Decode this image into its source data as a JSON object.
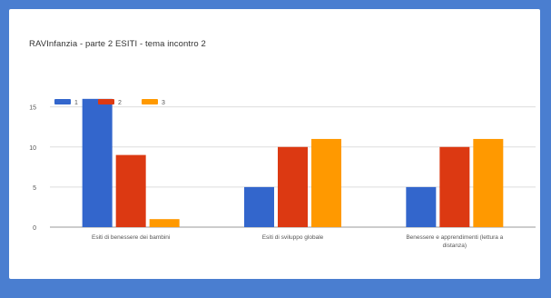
{
  "chart_data": {
    "type": "bar",
    "title": "RAVInfanzia - parte 2 ESITI - tema incontro 2",
    "categories": [
      [
        "Esiti di benessere dei bambini"
      ],
      [
        "Esiti di sviluppo globale"
      ],
      [
        "Benessere e apprendimenti (lettura a",
        "distanza)"
      ]
    ],
    "series": [
      {
        "name": "1",
        "color": "#3366cc",
        "values": [
          16,
          5,
          5
        ]
      },
      {
        "name": "2",
        "color": "#dc3912",
        "values": [
          9,
          10,
          10
        ]
      },
      {
        "name": "3",
        "color": "#ff9900",
        "values": [
          1,
          11,
          11
        ]
      }
    ],
    "yticks": [
      0,
      5,
      10,
      15
    ],
    "ylim": [
      0,
      17
    ],
    "grid": true,
    "legend": "top-left",
    "xlabel": "",
    "ylabel": ""
  }
}
